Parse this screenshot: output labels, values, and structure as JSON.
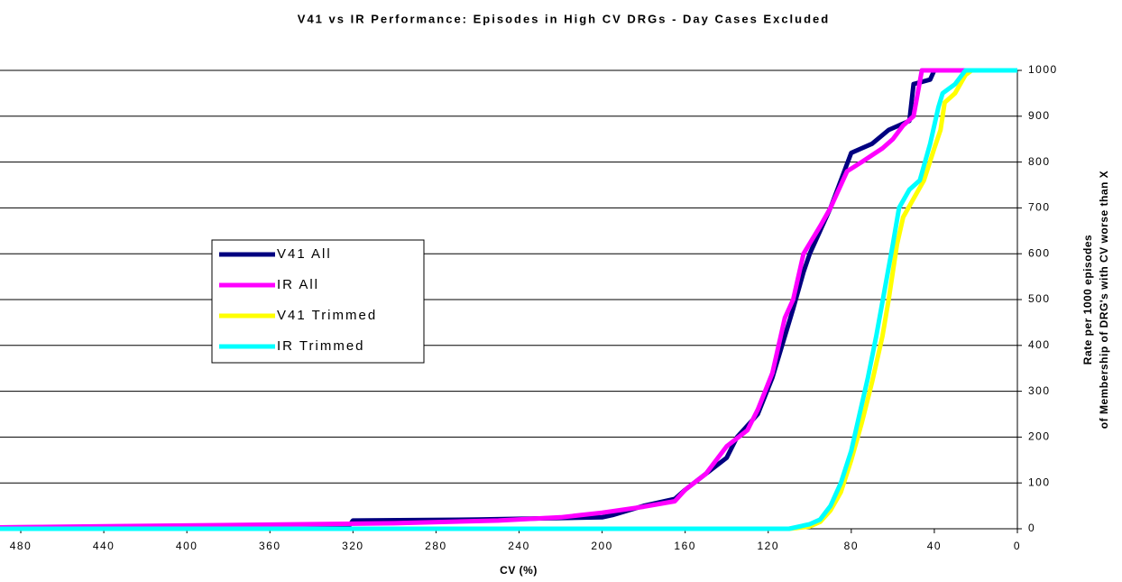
{
  "chart_data": {
    "type": "line",
    "title": "V41 vs IR Performance: Episodes in High CV DRGs - Day Cases Excluded",
    "x_label": "CV (%)",
    "y_label": [
      "Rate per 1000 episodes",
      "of Membership of DRG's with CV worse than X"
    ],
    "xlim": [
      490,
      0
    ],
    "xticks": [
      480,
      440,
      400,
      360,
      320,
      280,
      240,
      200,
      160,
      120,
      80,
      40,
      0
    ],
    "ylim": [
      0,
      1000
    ],
    "yticks": [
      0,
      100,
      200,
      300,
      400,
      500,
      600,
      700,
      800,
      900,
      1000
    ],
    "grid": true,
    "y_axis_side": "right",
    "legend": "left",
    "series": [
      {
        "name": "V41 All",
        "color": "#000080",
        "x": [
          490,
          350,
          322,
          320,
          260,
          200,
          195,
          180,
          165,
          160,
          150,
          140,
          135,
          125,
          118,
          112,
          108,
          103,
          100,
          95,
          90,
          85,
          80,
          70,
          62,
          52,
          50,
          42,
          40,
          0
        ],
        "values": [
          3,
          5,
          6,
          18,
          20,
          25,
          30,
          50,
          65,
          85,
          120,
          155,
          200,
          250,
          330,
          420,
          480,
          560,
          600,
          650,
          700,
          760,
          820,
          840,
          870,
          890,
          970,
          980,
          1000,
          1000
        ]
      },
      {
        "name": "IR All",
        "color": "#ff00ff",
        "x": [
          490,
          300,
          250,
          220,
          200,
          180,
          165,
          160,
          150,
          140,
          130,
          125,
          118,
          112,
          108,
          103,
          95,
          90,
          82,
          75,
          65,
          60,
          55,
          50,
          48,
          46,
          0
        ],
        "values": [
          3,
          12,
          18,
          25,
          35,
          48,
          60,
          85,
          120,
          180,
          215,
          260,
          340,
          460,
          500,
          600,
          660,
          700,
          780,
          800,
          830,
          850,
          880,
          900,
          950,
          1000,
          1000
        ]
      },
      {
        "name": "V41 Trimmed",
        "color": "#ffff00",
        "x": [
          490,
          110,
          100,
          95,
          90,
          85,
          80,
          75,
          70,
          65,
          62,
          58,
          55,
          50,
          45,
          40,
          37,
          35,
          30,
          25,
          22,
          0
        ],
        "values": [
          0,
          0,
          5,
          15,
          40,
          80,
          150,
          230,
          320,
          420,
          500,
          620,
          680,
          720,
          760,
          830,
          870,
          930,
          950,
          990,
          1000,
          1000
        ]
      },
      {
        "name": "IR Trimmed",
        "color": "#00ffff",
        "x": [
          490,
          110,
          100,
          95,
          90,
          85,
          80,
          76,
          72,
          68,
          64,
          60,
          57,
          52,
          47,
          42,
          38,
          36,
          30,
          25,
          0
        ],
        "values": [
          0,
          0,
          10,
          20,
          50,
          100,
          170,
          250,
          330,
          420,
          520,
          620,
          700,
          740,
          760,
          840,
          920,
          950,
          970,
          1000,
          1000
        ]
      }
    ]
  }
}
